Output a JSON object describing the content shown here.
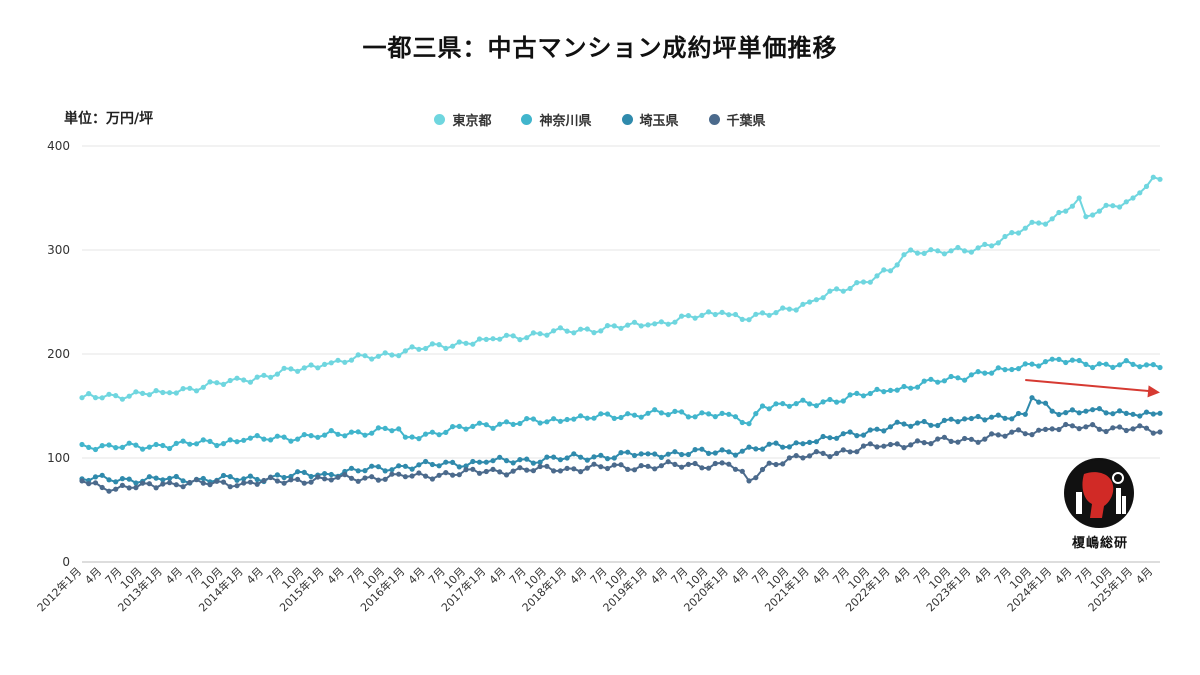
{
  "chart_data": {
    "type": "line",
    "title": "一都三県：中古マンション成約坪単価推移",
    "ylabel": "単位：万円/坪",
    "ylim": [
      0,
      400
    ],
    "yticks": [
      0,
      100,
      200,
      300,
      400
    ],
    "grid": true,
    "legend_position": "top-center",
    "x_start": "2012-01",
    "x_end": "2025-05",
    "x_tick_labels": [
      "2012年1月",
      "4月",
      "7月",
      "10月",
      "2013年1月",
      "4月",
      "7月",
      "10月",
      "2014年1月",
      "4月",
      "7月",
      "10月",
      "2015年1月",
      "4月",
      "7月",
      "10月",
      "2016年1月",
      "4月",
      "7月",
      "10月",
      "2017年1月",
      "4月",
      "7月",
      "10月",
      "2018年1月",
      "4月",
      "7月",
      "10月",
      "2019年1月",
      "4月",
      "7月",
      "10月",
      "2020年1月",
      "4月",
      "7月",
      "10月",
      "2021年1月",
      "4月",
      "7月",
      "10月",
      "2022年1月",
      "4月",
      "7月",
      "10月",
      "2023年1月",
      "4月",
      "7月",
      "10月",
      "2024年1月",
      "4月",
      "7月",
      "10月",
      "2025年1月",
      "4月"
    ],
    "series": [
      {
        "name": "東京都",
        "color": "#6fd6df",
        "anchors": [
          [
            "2012-01",
            158
          ],
          [
            "2012-06",
            160
          ],
          [
            "2013-01",
            163
          ],
          [
            "2014-01",
            175
          ],
          [
            "2015-01",
            190
          ],
          [
            "2016-01",
            203
          ],
          [
            "2017-01",
            214
          ],
          [
            "2018-01",
            222
          ],
          [
            "2019-01",
            228
          ],
          [
            "2019-12",
            240
          ],
          [
            "2020-04",
            233
          ],
          [
            "2021-01",
            250
          ],
          [
            "2022-01",
            280
          ],
          [
            "2022-04",
            300
          ],
          [
            "2023-01",
            298
          ],
          [
            "2023-06",
            313
          ],
          [
            "2024-01",
            330
          ],
          [
            "2024-05",
            350
          ],
          [
            "2024-06",
            332
          ],
          [
            "2025-01",
            350
          ],
          [
            "2025-04",
            370
          ],
          [
            "2025-05",
            368
          ]
        ]
      },
      {
        "name": "神奈川県",
        "color": "#41b5cc",
        "anchors": [
          [
            "2012-01",
            113
          ],
          [
            "2012-06",
            110
          ],
          [
            "2013-01",
            112
          ],
          [
            "2014-01",
            117
          ],
          [
            "2015-01",
            122
          ],
          [
            "2015-12",
            128
          ],
          [
            "2016-01",
            120
          ],
          [
            "2017-01",
            132
          ],
          [
            "2018-01",
            137
          ],
          [
            "2019-01",
            143
          ],
          [
            "2020-01",
            142
          ],
          [
            "2020-04",
            133
          ],
          [
            "2020-06",
            150
          ],
          [
            "2021-01",
            152
          ],
          [
            "2022-01",
            165
          ],
          [
            "2023-01",
            180
          ],
          [
            "2023-06",
            185
          ],
          [
            "2024-01",
            195
          ],
          [
            "2024-06",
            190
          ],
          [
            "2025-01",
            190
          ],
          [
            "2025-05",
            187
          ]
        ]
      },
      {
        "name": "埼玉県",
        "color": "#2f8aac",
        "anchors": [
          [
            "2012-01",
            80
          ],
          [
            "2013-01",
            79
          ],
          [
            "2014-01",
            80
          ],
          [
            "2015-01",
            85
          ],
          [
            "2016-01",
            92
          ],
          [
            "2017-01",
            96
          ],
          [
            "2018-01",
            100
          ],
          [
            "2019-01",
            104
          ],
          [
            "2020-01",
            106
          ],
          [
            "2021-01",
            115
          ],
          [
            "2022-01",
            130
          ],
          [
            "2023-01",
            138
          ],
          [
            "2023-09",
            142
          ],
          [
            "2023-10",
            158
          ],
          [
            "2024-01",
            145
          ],
          [
            "2024-06",
            145
          ],
          [
            "2025-01",
            142
          ],
          [
            "2025-05",
            143
          ]
        ]
      },
      {
        "name": "千葉県",
        "color": "#4b6a8c",
        "anchors": [
          [
            "2012-01",
            78
          ],
          [
            "2012-06",
            70
          ],
          [
            "2013-01",
            75
          ],
          [
            "2014-01",
            76
          ],
          [
            "2015-01",
            80
          ],
          [
            "2016-01",
            82
          ],
          [
            "2017-01",
            87
          ],
          [
            "2018-01",
            90
          ],
          [
            "2019-01",
            92
          ],
          [
            "2020-01",
            94
          ],
          [
            "2020-04",
            78
          ],
          [
            "2020-07",
            95
          ],
          [
            "2021-01",
            102
          ],
          [
            "2022-01",
            113
          ],
          [
            "2023-01",
            118
          ],
          [
            "2024-01",
            128
          ],
          [
            "2024-06",
            130
          ],
          [
            "2025-01",
            128
          ],
          [
            "2025-05",
            125
          ]
        ]
      }
    ],
    "annotation": {
      "type": "arrow",
      "color": "#d63a32",
      "from": [
        "2023-09",
        175
      ],
      "to": [
        "2025-05",
        163
      ]
    }
  },
  "watermark_text": "榎嶋総研"
}
